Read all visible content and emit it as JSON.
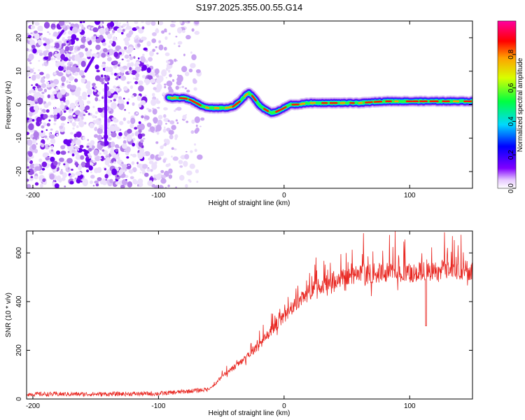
{
  "title": "S197.2025.355.00.55.G14",
  "chart_data": [
    {
      "type": "heatmap",
      "name": "spectrogram",
      "xlabel": "Height of straight line (km)",
      "ylabel": "Frequency (Hz)",
      "xlim": [
        -205,
        150
      ],
      "ylim": [
        -25,
        25
      ],
      "xticks": [
        -200,
        -100,
        0,
        100
      ],
      "yticks": [
        -20,
        -10,
        0,
        10,
        20
      ],
      "colorbar": {
        "label": "Normalized spectral amplitude",
        "range": [
          0,
          1
        ],
        "ticks": [
          0.0,
          0.2,
          0.4,
          0.6,
          0.8
        ],
        "tick_labels": [
          "0.0",
          "0.2",
          "0.4",
          "0.6",
          "0.8"
        ]
      },
      "ridge": {
        "x": [
          -92,
          -85,
          -80,
          -75,
          -70,
          -65,
          -60,
          -55,
          -50,
          -45,
          -40,
          -35,
          -30,
          -28,
          -25,
          -20,
          -15,
          -10,
          -5,
          0,
          5,
          10,
          20,
          40,
          60,
          80,
          100,
          120,
          140,
          150
        ],
        "y": [
          2,
          2,
          2,
          1.5,
          0.5,
          -0.5,
          -1,
          -1,
          -1,
          -1,
          -0.5,
          1,
          3,
          3.5,
          2.5,
          0,
          -1.5,
          -2.5,
          -2,
          -1,
          0,
          0,
          0.5,
          0.5,
          0.5,
          1,
          1,
          1,
          1,
          1
        ]
      },
      "noise_region_x": [
        -205,
        -65
      ]
    },
    {
      "type": "line",
      "name": "snr",
      "xlabel": "Height of straight line (km)",
      "ylabel": "SNR (10 * v/v)",
      "xlim": [
        -205,
        150
      ],
      "ylim": [
        0,
        690
      ],
      "xticks": [
        -200,
        -100,
        0,
        100
      ],
      "yticks": [
        0,
        200,
        400,
        600
      ],
      "color": "#e8251f",
      "envelope": {
        "x": [
          -205,
          -150,
          -100,
          -80,
          -70,
          -60,
          -55,
          -50,
          -40,
          -30,
          -20,
          -10,
          0,
          10,
          20,
          30,
          40,
          60,
          80,
          100,
          120,
          150
        ],
        "y": [
          20,
          20,
          22,
          30,
          35,
          40,
          60,
          90,
          130,
          170,
          220,
          280,
          340,
          390,
          440,
          470,
          490,
          510,
          520,
          520,
          525,
          530
        ]
      },
      "dip": {
        "x": 113,
        "y": 300
      }
    }
  ]
}
